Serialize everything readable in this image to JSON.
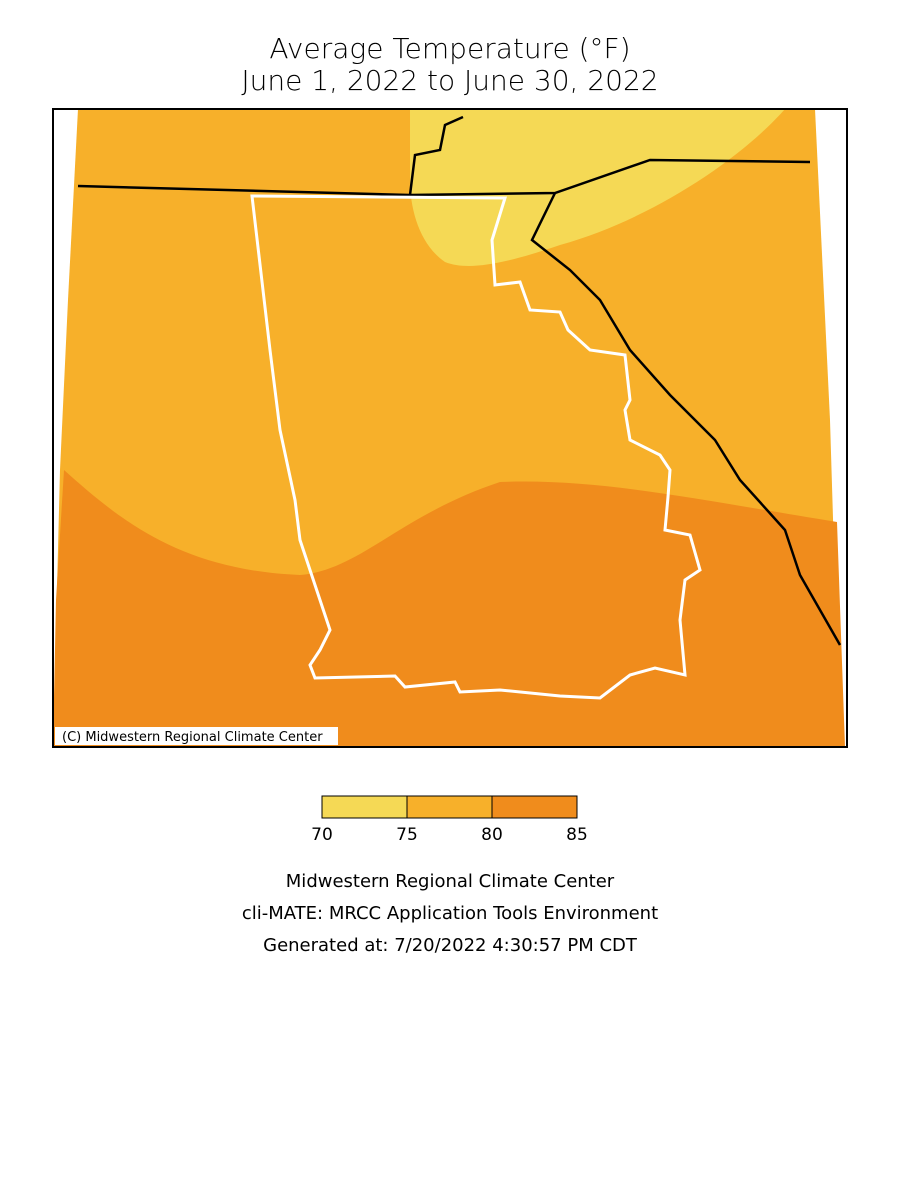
{
  "map": {
    "title": [
      "Average Temperature (°F)",
      "June 1, 2022 to June 30, 2022"
    ],
    "credit": "(C) Midwestern Regional Climate Center",
    "legend": {
      "bins": [
        70,
        75,
        80,
        85
      ],
      "colors": [
        "#f5d955",
        "#f7b02a",
        "#f08c1c"
      ]
    },
    "footer": [
      "Midwestern Regional Climate Center",
      "cli-MATE: MRCC Application Tools Environment",
      "Generated at: 7/20/2022 4:30:57 PM CDT"
    ]
  }
}
